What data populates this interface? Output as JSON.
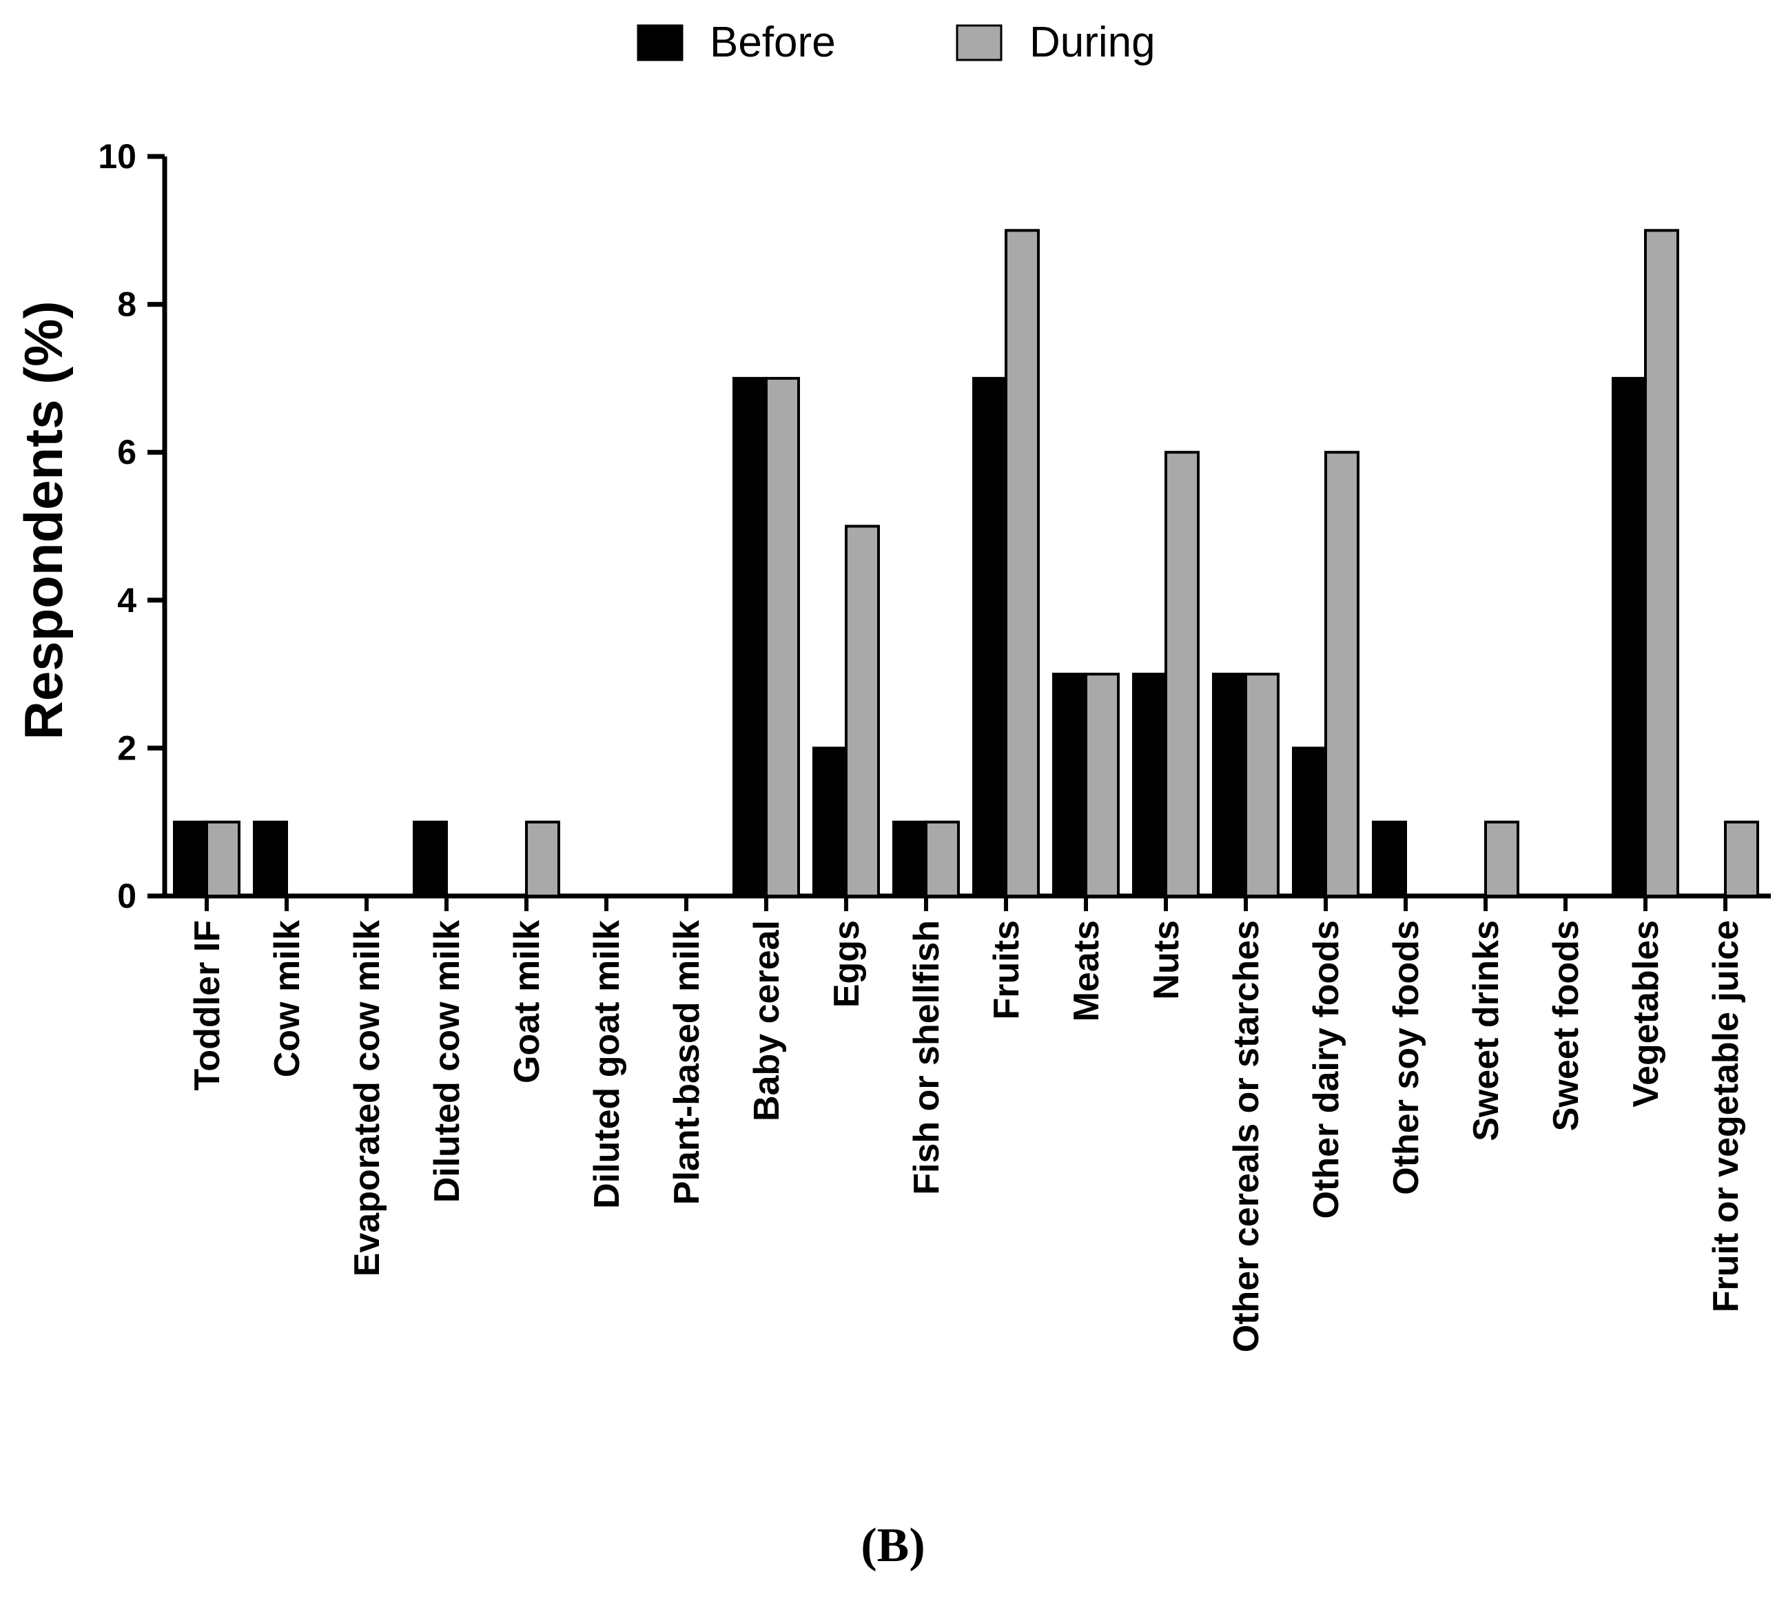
{
  "chart_data": {
    "type": "bar",
    "categories": [
      "Toddler IF",
      "Cow milk",
      "Evaporated cow milk",
      "Diluted cow milk",
      "Goat milk",
      "Diluted goat milk",
      "Plant-based milk",
      "Baby cereal",
      "Eggs",
      "Fish or shellfish",
      "Fruits",
      "Meats",
      "Nuts",
      "Other cereals or starches",
      "Other dairy foods",
      "Other soy foods",
      "Sweet drinks",
      "Sweet foods",
      "Vegetables",
      "Fruit or vegetable juice"
    ],
    "series": [
      {
        "name": "Before",
        "color": "#000000",
        "values": [
          1,
          1,
          0,
          1,
          0,
          0,
          0,
          7,
          2,
          1,
          7,
          3,
          3,
          3,
          2,
          1,
          0,
          0,
          7,
          0
        ]
      },
      {
        "name": "During",
        "color": "#a9a9a9",
        "values": [
          1,
          0,
          0,
          0,
          1,
          0,
          0,
          7,
          5,
          1,
          9,
          3,
          6,
          3,
          6,
          0,
          1,
          0,
          9,
          1
        ]
      }
    ],
    "title": "",
    "xlabel": "",
    "ylabel": "Respondents (%)",
    "ylim": [
      0,
      10
    ],
    "yticks": [
      "0",
      "2",
      "4",
      "6",
      "8",
      "10"
    ],
    "legend_position": "top-center",
    "grid": false
  },
  "panel_label": "(B)"
}
